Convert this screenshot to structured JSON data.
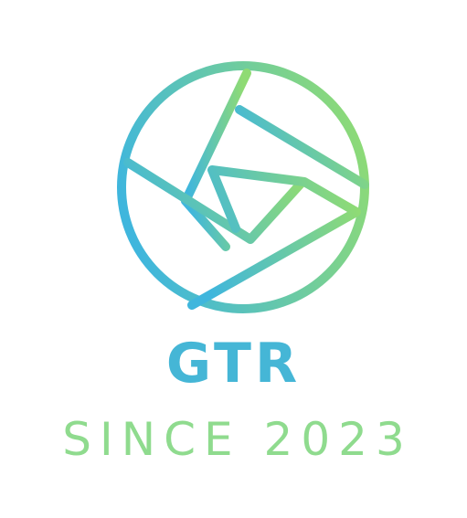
{
  "logo": {
    "icon": "aperture-shutter-icon",
    "gradient_start": "#3fb6dd",
    "gradient_end": "#8fdb74",
    "brand_name": "GTR",
    "tagline": "SINCE 2023",
    "brand_color": "#45b6d6",
    "tagline_color": "#8fdb8e"
  }
}
